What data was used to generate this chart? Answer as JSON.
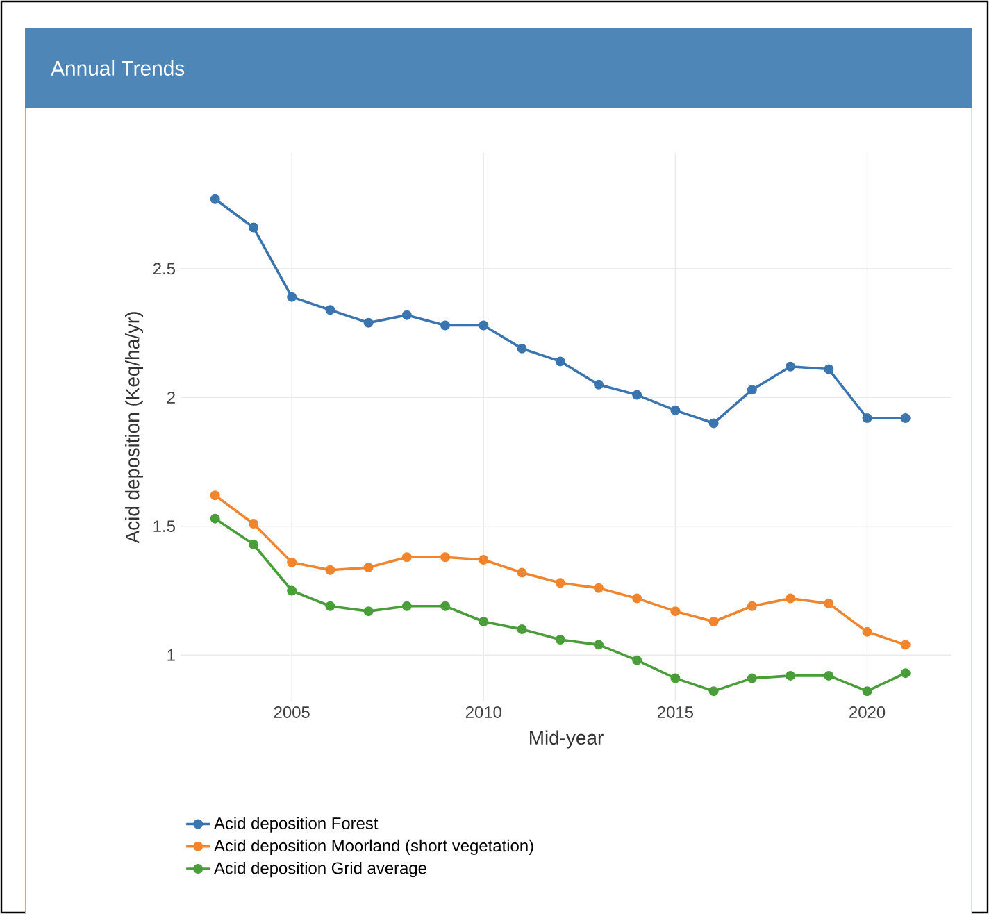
{
  "chart_data": {
    "type": "line",
    "title": "Annual Trends",
    "xlabel": "Mid-year",
    "ylabel": "Acid deposition (Keq/ha/yr)",
    "x": [
      2003,
      2004,
      2005,
      2006,
      2007,
      2008,
      2009,
      2010,
      2011,
      2012,
      2013,
      2014,
      2015,
      2016,
      2017,
      2018,
      2019,
      2020,
      2021
    ],
    "series": [
      {
        "name": "Acid deposition Forest",
        "color": "#3a75b0",
        "values": [
          2.77,
          2.66,
          2.39,
          2.34,
          2.29,
          2.32,
          2.28,
          2.28,
          2.19,
          2.14,
          2.05,
          2.01,
          1.95,
          1.9,
          2.03,
          2.12,
          2.11,
          1.92,
          1.92
        ]
      },
      {
        "name": "Acid deposition Moorland (short vegetation)",
        "color": "#f0852d",
        "values": [
          1.62,
          1.51,
          1.36,
          1.33,
          1.34,
          1.38,
          1.38,
          1.37,
          1.32,
          1.28,
          1.26,
          1.22,
          1.17,
          1.13,
          1.19,
          1.22,
          1.2,
          1.09,
          1.04
        ]
      },
      {
        "name": "Acid deposition Grid average",
        "color": "#4a9e3a",
        "values": [
          1.53,
          1.43,
          1.25,
          1.19,
          1.17,
          1.19,
          1.19,
          1.13,
          1.1,
          1.06,
          1.04,
          0.98,
          0.91,
          0.86,
          0.91,
          0.92,
          0.92,
          0.86,
          0.93
        ]
      }
    ],
    "xlim": [
      2002.1,
      2022.2
    ],
    "ylim": [
      0.82,
      2.95
    ],
    "xticks": [
      2005,
      2010,
      2015,
      2020
    ],
    "yticks": [
      1,
      1.5,
      2,
      2.5
    ],
    "grid": true,
    "legend": "bottom",
    "marker": "circle",
    "line_style": "solid"
  }
}
